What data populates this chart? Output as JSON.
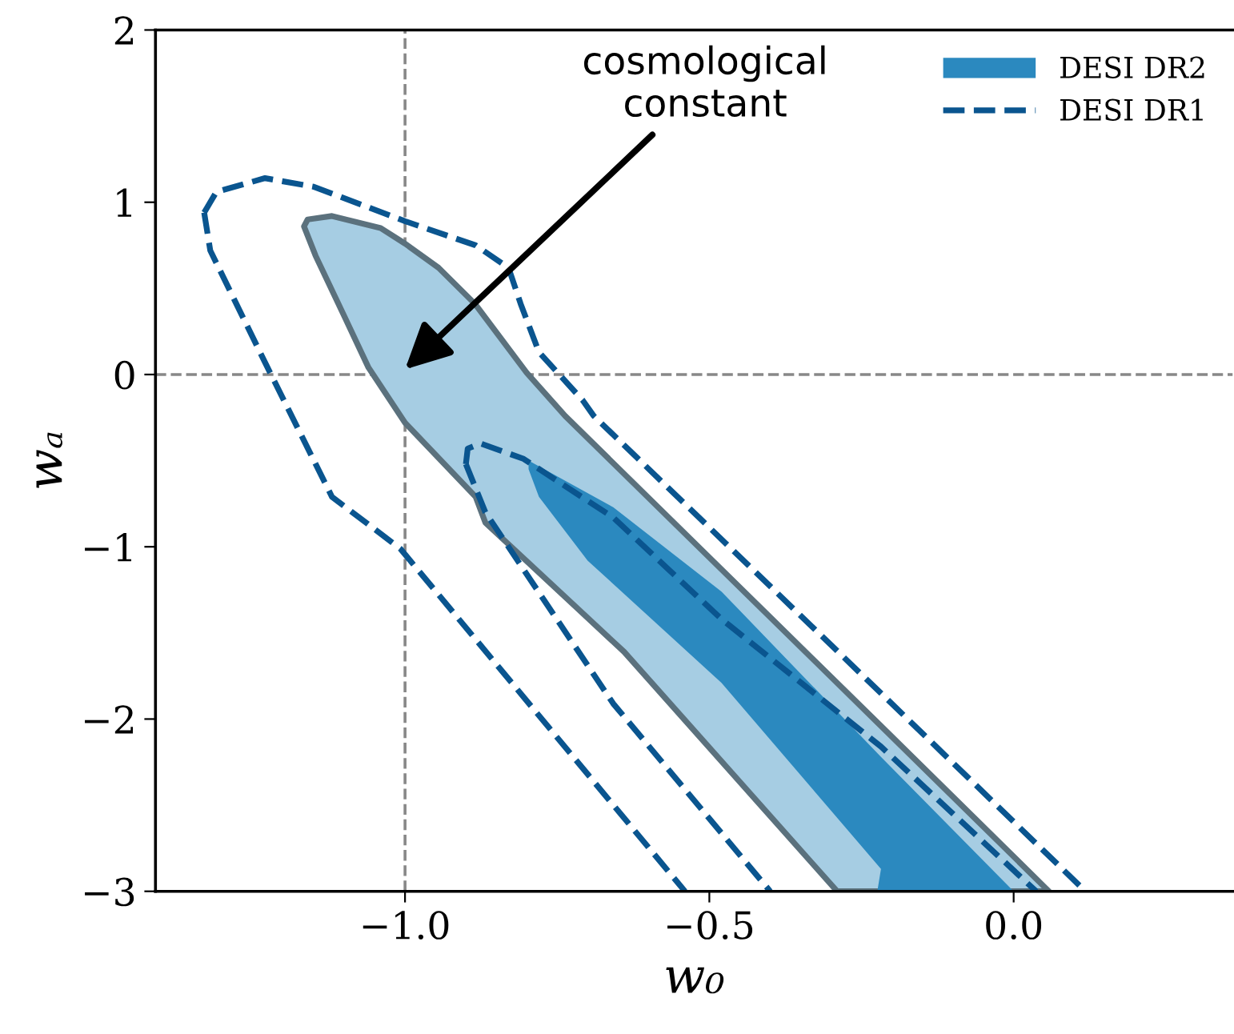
{
  "chart_data": {
    "type": "area",
    "xlabel": "w₀",
    "ylabel": "wₐ",
    "xlim": [
      -1.41,
      0.36
    ],
    "ylim": [
      -3,
      2
    ],
    "xticks": [
      {
        "value": -1.0,
        "label": "−1.0"
      },
      {
        "value": -0.5,
        "label": "−0.5"
      },
      {
        "value": 0.0,
        "label": "0.0"
      }
    ],
    "yticks": [
      {
        "value": -3,
        "label": "−3"
      },
      {
        "value": -2,
        "label": "−2"
      },
      {
        "value": -1,
        "label": "−1"
      },
      {
        "value": 0,
        "label": "0"
      },
      {
        "value": 1,
        "label": "1"
      },
      {
        "value": 2,
        "label": "2"
      }
    ],
    "legend": "top right",
    "ref_lines": [
      {
        "axis": "x",
        "value": -1.0,
        "color": "#888888",
        "line_style": "dashed"
      },
      {
        "axis": "y",
        "value": 0,
        "color": "#888888",
        "line_style": "dashed"
      }
    ],
    "annotations": [
      {
        "text": "cosmological\nconstant",
        "x": -1.0,
        "y": 0.03
      }
    ],
    "series": [
      {
        "color": "#a6cde3",
        "line_style": "solid",
        "x": [
          -1.166,
          -1.16,
          -1.12,
          -1.04,
          -1.0,
          -0.945,
          -0.885,
          -0.8,
          -0.737,
          -0.218,
          0.058,
          -0.29,
          -0.64,
          -0.868,
          -0.884,
          -1.0,
          -1.06,
          -1.1,
          -1.147,
          -1.166
        ],
        "values": [
          0.86,
          0.9,
          0.92,
          0.85,
          0.76,
          0.62,
          0.41,
          0.01,
          -0.24,
          -2.04,
          -3,
          -3,
          -1.61,
          -0.86,
          -0.71,
          -0.28,
          0.04,
          0.34,
          0.69,
          0.86
        ]
      },
      {
        "name": "DESI DR2",
        "color": "#2b89bf",
        "x": [
          -0.797,
          -0.658,
          -0.48,
          -0.218,
          0.0,
          -0.224,
          -0.218,
          -0.48,
          -0.7,
          -0.78,
          -0.797,
          -0.797
        ],
        "values": [
          -0.5,
          -0.77,
          -1.26,
          -2.22,
          -3,
          -3,
          -2.87,
          -1.79,
          -1.08,
          -0.71,
          -0.55,
          -0.5
        ]
      },
      {
        "type": "line",
        "line_style": "dashed",
        "name": "DESI DR1",
        "color": "#0a558f",
        "x": [
          -1.33,
          -1.31,
          -1.23,
          -1.15,
          -1.0,
          -0.884,
          -0.83,
          -0.81,
          -0.78,
          -0.708,
          -0.69,
          -0.218,
          0.118
        ],
        "values": [
          0.94,
          1.06,
          1.14,
          1.09,
          0.89,
          0.75,
          0.62,
          0.41,
          0.13,
          -0.15,
          -0.24,
          -1.85,
          -3
        ]
      },
      {
        "type": "line",
        "line_style": "dashed",
        "color": "#0a558f",
        "x": [
          -1.33,
          -1.32,
          -1.23,
          -1.12,
          -1.008,
          -0.54
        ],
        "values": [
          0.94,
          0.72,
          0.07,
          -0.71,
          -1.01,
          -3
        ]
      },
      {
        "type": "line",
        "line_style": "dashed",
        "color": "#0a558f",
        "x": [
          -0.9,
          -0.897,
          -0.876,
          -0.805,
          -0.658,
          -0.48,
          -0.218,
          0.037
        ],
        "values": [
          -0.52,
          -0.43,
          -0.4,
          -0.49,
          -0.83,
          -1.42,
          -2.16,
          -3
        ]
      },
      {
        "type": "line",
        "line_style": "dashed",
        "color": "#0a558f",
        "x": [
          -0.9,
          -0.868,
          -0.658,
          -0.4
        ],
        "values": [
          -0.52,
          -0.8,
          -1.91,
          -3
        ]
      }
    ]
  }
}
